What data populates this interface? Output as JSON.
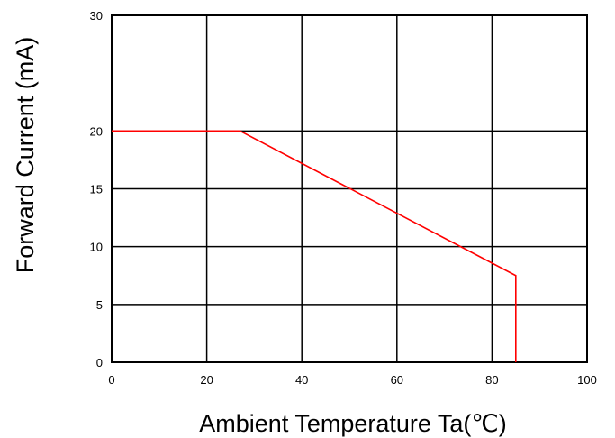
{
  "chart_data": {
    "type": "line",
    "title": "",
    "xlabel": "Ambient Temperature Ta(℃)",
    "ylabel": "Forward Current (mA)",
    "xlim": [
      0,
      100
    ],
    "ylim": [
      0,
      30
    ],
    "x_ticks": [
      "0",
      "20",
      "40",
      "60",
      "80",
      "100"
    ],
    "y_ticks": [
      "0",
      "5",
      "10",
      "15",
      "20",
      "30"
    ],
    "grid": true,
    "colors": {
      "series": "#ff0000",
      "grid": "#000000",
      "text": "#000000"
    },
    "series": [
      {
        "x": [
          0,
          27,
          85,
          85
        ],
        "y": [
          20,
          20,
          7.5,
          0
        ]
      }
    ]
  }
}
